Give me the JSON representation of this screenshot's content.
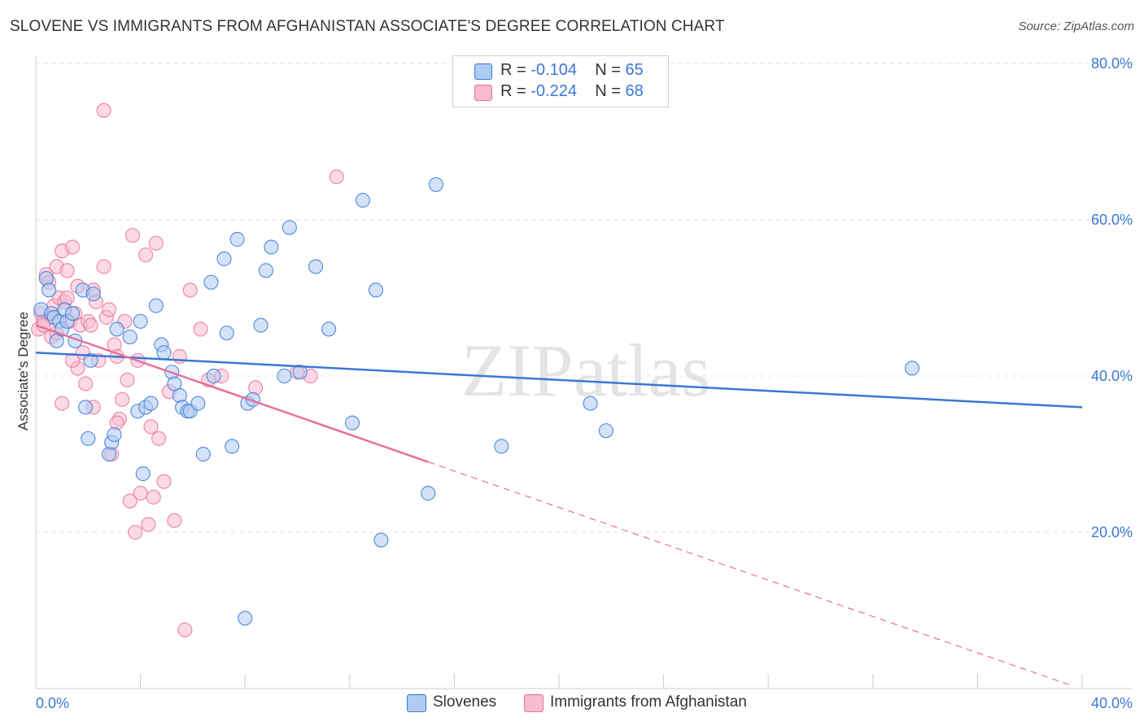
{
  "title": "SLOVENE VS IMMIGRANTS FROM AFGHANISTAN ASSOCIATE'S DEGREE CORRELATION CHART",
  "source": "Source: ZipAtlas.com",
  "watermark": "ZIPatlas",
  "legend": {
    "slovenes": {
      "r_label": "R = ",
      "r_value": "-0.104",
      "n_label": "N = ",
      "n_value": "65"
    },
    "afghanistan": {
      "r_label": "R = ",
      "r_value": "-0.224",
      "n_label": "N = ",
      "n_value": "68"
    }
  },
  "colors": {
    "blue": "#3a78d4",
    "pink": "#e8709a",
    "blue_fill": "#aecbf2",
    "pink_fill": "#f7bcd0"
  },
  "chart_data": {
    "type": "scatter",
    "xlabel": "",
    "ylabel": "Associate's Degree",
    "xlim": [
      0,
      40
    ],
    "ylim": [
      0,
      80
    ],
    "x_tick_labels": [
      "0.0%",
      "40.0%"
    ],
    "y_tick_labels": [
      "20.0%",
      "40.0%",
      "60.0%",
      "80.0%"
    ],
    "y_ticks": [
      20,
      40,
      60,
      80
    ],
    "grid": "horizontal dashed",
    "series": [
      {
        "name": "Slovenes",
        "color": "#3a78d4",
        "trend": {
          "x0": 0,
          "y0": 43.0,
          "x1": 40,
          "y1": 36.0
        },
        "points": [
          [
            0.2,
            48.5
          ],
          [
            0.4,
            52.5
          ],
          [
            0.5,
            51
          ],
          [
            0.6,
            48
          ],
          [
            0.7,
            47.5
          ],
          [
            0.8,
            44.5
          ],
          [
            0.9,
            47
          ],
          [
            1.0,
            46
          ],
          [
            1.1,
            48.5
          ],
          [
            1.2,
            47
          ],
          [
            1.4,
            48
          ],
          [
            1.5,
            44.5
          ],
          [
            1.8,
            51
          ],
          [
            1.9,
            36
          ],
          [
            2.0,
            32
          ],
          [
            2.1,
            42
          ],
          [
            2.2,
            50.5
          ],
          [
            2.8,
            30
          ],
          [
            2.9,
            31.5
          ],
          [
            3.0,
            32.5
          ],
          [
            3.1,
            46
          ],
          [
            3.6,
            45
          ],
          [
            3.9,
            35.5
          ],
          [
            4.0,
            47
          ],
          [
            4.1,
            27.5
          ],
          [
            4.2,
            36
          ],
          [
            4.4,
            36.5
          ],
          [
            4.6,
            49
          ],
          [
            4.8,
            44
          ],
          [
            4.9,
            43
          ],
          [
            5.2,
            40.5
          ],
          [
            5.3,
            39
          ],
          [
            5.5,
            37.5
          ],
          [
            5.6,
            36
          ],
          [
            5.8,
            35.5
          ],
          [
            5.9,
            35.5
          ],
          [
            6.2,
            36.5
          ],
          [
            6.4,
            30
          ],
          [
            6.7,
            52
          ],
          [
            6.8,
            40
          ],
          [
            7.2,
            55
          ],
          [
            7.3,
            45.5
          ],
          [
            7.5,
            31
          ],
          [
            7.7,
            57.5
          ],
          [
            8.0,
            9
          ],
          [
            8.1,
            36.5
          ],
          [
            8.3,
            37
          ],
          [
            8.6,
            46.5
          ],
          [
            8.8,
            53.5
          ],
          [
            9.0,
            56.5
          ],
          [
            9.5,
            40
          ],
          [
            9.7,
            59
          ],
          [
            10.1,
            40.5
          ],
          [
            10.7,
            54
          ],
          [
            11.2,
            46
          ],
          [
            12.1,
            34
          ],
          [
            12.5,
            62.5
          ],
          [
            13.0,
            51
          ],
          [
            13.2,
            19
          ],
          [
            15.0,
            25
          ],
          [
            15.3,
            64.5
          ],
          [
            17.8,
            31
          ],
          [
            21.2,
            36.5
          ],
          [
            21.8,
            33
          ],
          [
            33.5,
            41
          ]
        ]
      },
      {
        "name": "Immigrants from Afghanistan",
        "color": "#e8709a",
        "trend": {
          "x0": 0,
          "y0": 46.5,
          "x1": 15.0,
          "y1": 29.0,
          "dash_x1": 39.5,
          "dash_y1": 0.5
        },
        "points": [
          [
            0.1,
            46
          ],
          [
            0.2,
            48
          ],
          [
            0.3,
            47
          ],
          [
            0.4,
            53
          ],
          [
            0.5,
            52
          ],
          [
            0.6,
            45
          ],
          [
            0.7,
            49
          ],
          [
            0.8,
            54
          ],
          [
            0.9,
            50
          ],
          [
            1.0,
            56
          ],
          [
            1.1,
            49.5
          ],
          [
            1.2,
            53.5
          ],
          [
            1.3,
            47
          ],
          [
            1.4,
            56.5
          ],
          [
            1.5,
            48
          ],
          [
            1.6,
            41
          ],
          [
            1.7,
            46.5
          ],
          [
            1.8,
            43
          ],
          [
            1.9,
            39
          ],
          [
            2.0,
            47
          ],
          [
            2.1,
            46.5
          ],
          [
            2.2,
            51
          ],
          [
            2.3,
            49.5
          ],
          [
            2.4,
            42
          ],
          [
            2.6,
            54
          ],
          [
            2.7,
            47.5
          ],
          [
            2.8,
            48.5
          ],
          [
            2.9,
            30
          ],
          [
            3.0,
            44
          ],
          [
            3.1,
            42.5
          ],
          [
            3.2,
            34.5
          ],
          [
            3.3,
            37
          ],
          [
            3.4,
            47
          ],
          [
            3.5,
            39.5
          ],
          [
            3.6,
            24
          ],
          [
            3.7,
            58
          ],
          [
            3.8,
            20
          ],
          [
            3.9,
            42
          ],
          [
            4.0,
            25
          ],
          [
            4.2,
            55.5
          ],
          [
            4.3,
            21
          ],
          [
            4.4,
            33.5
          ],
          [
            4.5,
            24.5
          ],
          [
            4.6,
            57
          ],
          [
            4.7,
            32
          ],
          [
            4.9,
            26.5
          ],
          [
            5.1,
            38
          ],
          [
            5.3,
            21.5
          ],
          [
            5.5,
            42.5
          ],
          [
            5.7,
            7.5
          ],
          [
            5.9,
            51
          ],
          [
            6.3,
            46
          ],
          [
            6.6,
            39.5
          ],
          [
            7.1,
            40
          ],
          [
            8.4,
            38.5
          ],
          [
            10.0,
            40.5
          ],
          [
            10.5,
            40
          ],
          [
            11.5,
            65.5
          ],
          [
            2.6,
            74
          ],
          [
            1.0,
            36.5
          ],
          [
            1.6,
            51.5
          ],
          [
            1.2,
            50
          ],
          [
            0.6,
            47.5
          ],
          [
            0.8,
            45.5
          ],
          [
            1.4,
            42
          ],
          [
            3.1,
            34
          ],
          [
            2.2,
            36
          ],
          [
            0.3,
            46.5
          ]
        ]
      }
    ]
  },
  "bottom_legend": [
    "Slovenes",
    "Immigrants from Afghanistan"
  ]
}
